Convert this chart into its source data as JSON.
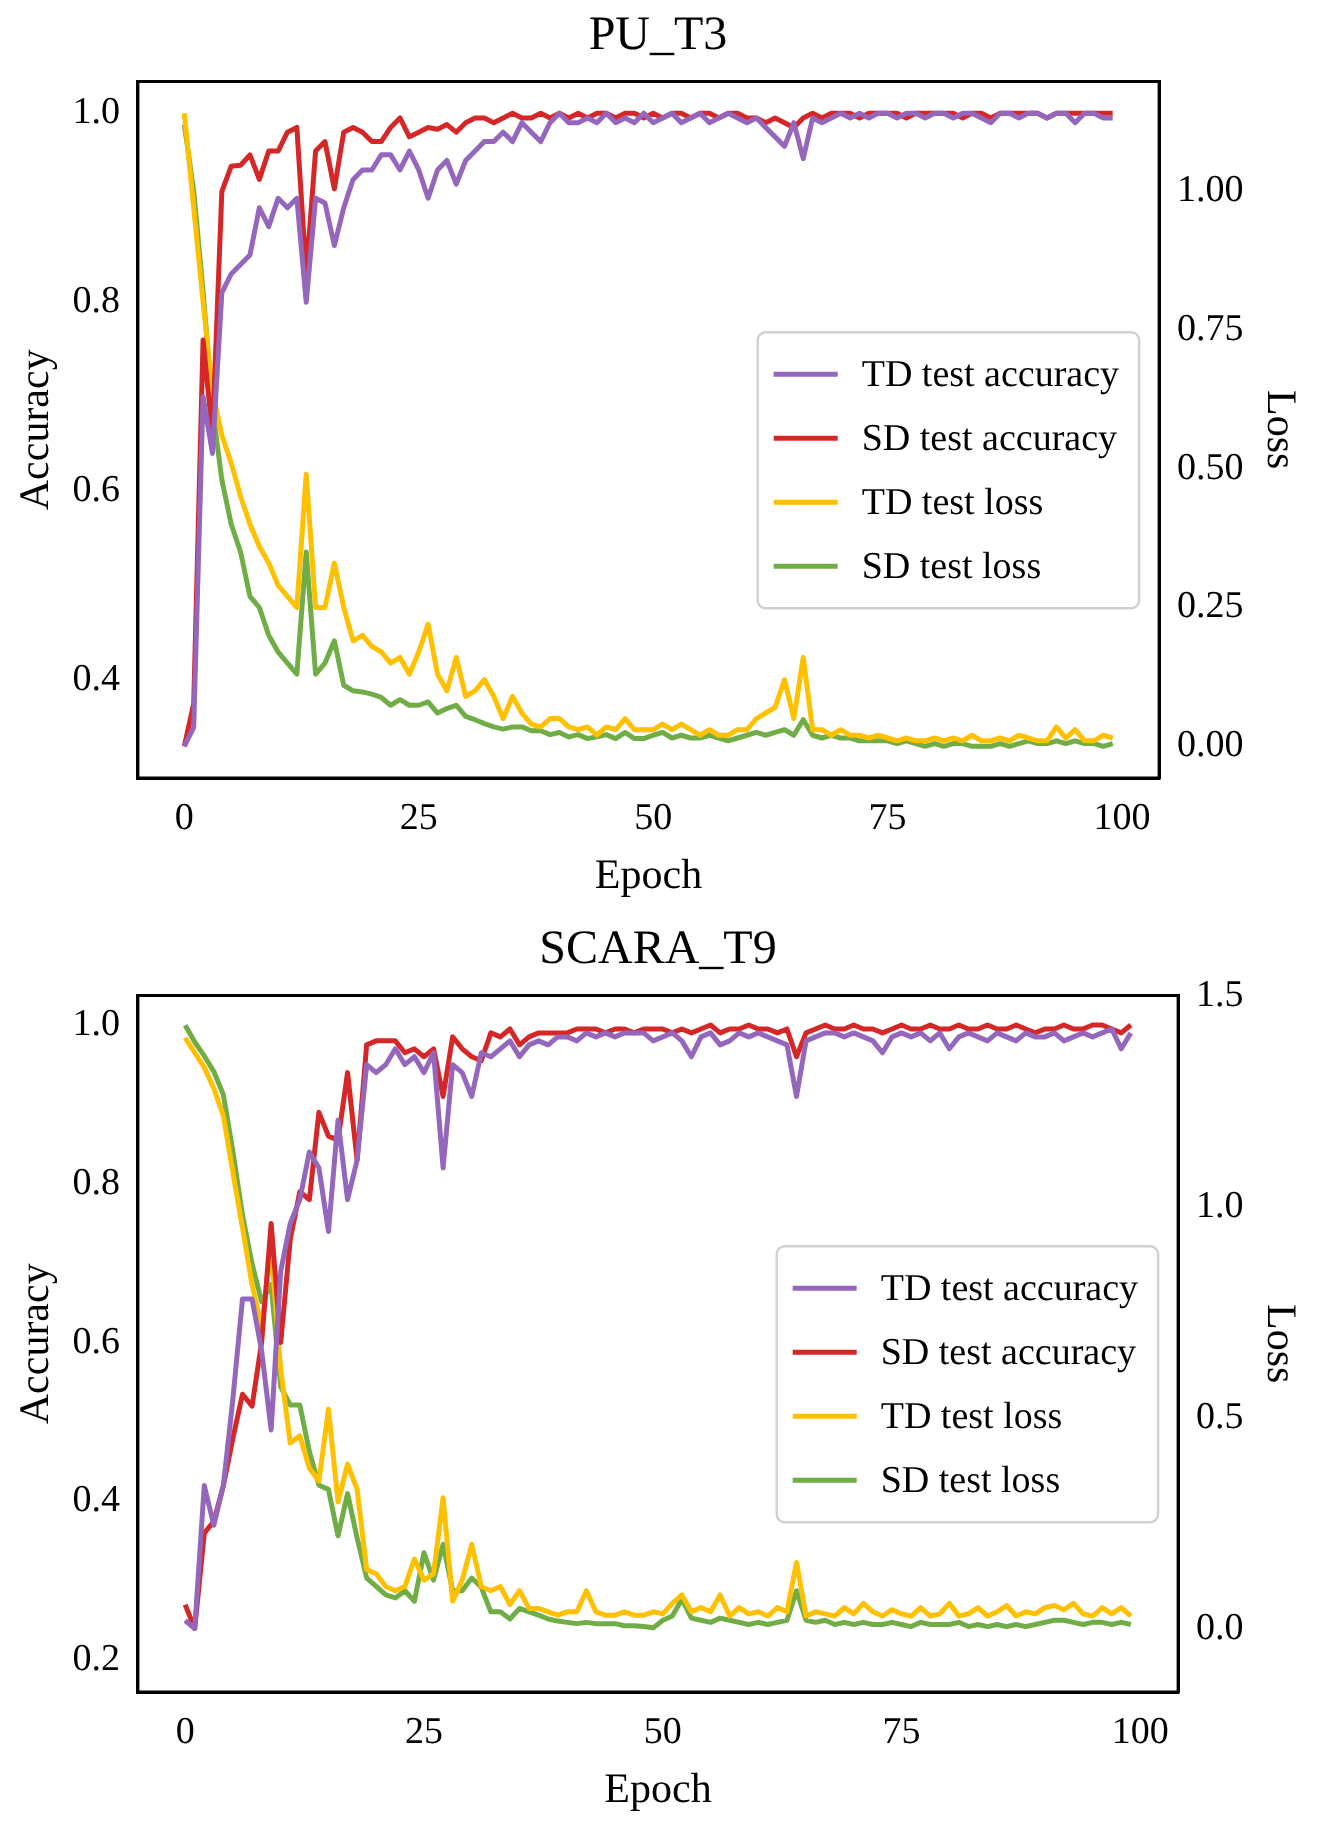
{
  "chart_data": [
    {
      "type": "line",
      "title": "PU_T3",
      "xlabel": "Epoch",
      "ylabel": "Accuracy",
      "y2label": "Loss",
      "legend": "right",
      "grid": false,
      "x": [
        0,
        1,
        2,
        3,
        4,
        5,
        6,
        7,
        8,
        9,
        10,
        11,
        12,
        13,
        14,
        15,
        16,
        17,
        18,
        19,
        20,
        21,
        22,
        23,
        24,
        25,
        26,
        27,
        28,
        29,
        30,
        31,
        32,
        33,
        34,
        35,
        36,
        37,
        38,
        39,
        40,
        41,
        42,
        43,
        44,
        45,
        46,
        47,
        48,
        49,
        50,
        51,
        52,
        53,
        54,
        55,
        56,
        57,
        58,
        59,
        60,
        61,
        62,
        63,
        64,
        65,
        66,
        67,
        68,
        69,
        70,
        71,
        72,
        73,
        74,
        75,
        76,
        77,
        78,
        79,
        80,
        81,
        82,
        83,
        84,
        85,
        86,
        87,
        88,
        89,
        90,
        91,
        92,
        93,
        94,
        95,
        96,
        97,
        98,
        99
      ],
      "xlim": [
        -4.95,
        103.95
      ],
      "xticks": [
        0,
        25,
        50,
        75,
        100
      ],
      "ylim": [
        0.2965,
        1.0335
      ],
      "yticks": [
        0.4,
        0.6,
        0.8,
        {
          "value": 1.0,
          "label": "1.0"
        }
      ],
      "y2lim": [
        -0.057,
        1.197
      ],
      "y2ticks": [
        {
          "value": 0,
          "label": "0.00"
        },
        {
          "value": 0.25,
          "label": "0.25"
        },
        {
          "value": 0.5,
          "label": "0.50"
        },
        {
          "value": 0.75,
          "label": "0.75"
        },
        {
          "value": 1.0,
          "label": "1.00"
        }
      ],
      "series": [
        {
          "name": "TD test accuracy",
          "color": "#9467bd",
          "values": [
            0.33,
            0.35,
            0.7,
            0.64,
            0.81,
            0.83,
            0.84,
            0.85,
            0.9,
            0.88,
            0.91,
            0.9,
            0.91,
            0.8,
            0.91,
            0.905,
            0.86,
            0.9,
            0.93,
            0.94,
            0.94,
            0.956,
            0.956,
            0.94,
            0.96,
            0.94,
            0.91,
            0.94,
            0.95,
            0.925,
            0.95,
            0.96,
            0.97,
            0.97,
            0.98,
            0.97,
            0.99,
            0.98,
            0.97,
            0.99,
            1.0,
            0.99,
            0.99,
            0.995,
            0.99,
            1.0,
            0.99,
            0.995,
            0.99,
            1.0,
            0.99,
            0.995,
            1.0,
            0.99,
            0.995,
            1.0,
            0.99,
            0.995,
            1.0,
            0.995,
            0.99,
            0.995,
            0.985,
            0.975,
            0.965,
            0.99,
            0.952,
            0.995,
            0.99,
            0.995,
            1.0,
            0.995,
            1.0,
            0.995,
            1.0,
            1.0,
            0.995,
            1.0,
            1.0,
            0.995,
            1.0,
            1.0,
            0.995,
            1.0,
            1.0,
            0.995,
            0.99,
            1.0,
            1.0,
            0.995,
            1.0,
            1.0,
            0.995,
            1.0,
            1.0,
            0.99,
            1.0,
            1.0,
            0.995,
            0.995
          ]
        },
        {
          "name": "SD test accuracy",
          "color": "#d62728",
          "values": [
            0.33,
            0.375,
            0.76,
            0.66,
            0.917,
            0.944,
            0.945,
            0.956,
            0.93,
            0.96,
            0.96,
            0.98,
            0.985,
            0.83,
            0.96,
            0.97,
            0.92,
            0.98,
            0.985,
            0.98,
            0.97,
            0.97,
            0.985,
            0.995,
            0.975,
            0.98,
            0.985,
            0.983,
            0.988,
            0.98,
            0.99,
            0.995,
            0.995,
            0.99,
            0.995,
            1.0,
            0.995,
            0.995,
            1.0,
            0.995,
            1.0,
            0.995,
            1.0,
            0.995,
            1.0,
            1.0,
            0.995,
            1.0,
            1.0,
            0.995,
            1.0,
            0.995,
            1.0,
            1.0,
            0.995,
            1.0,
            1.0,
            0.995,
            1.0,
            1.0,
            0.995,
            0.995,
            0.99,
            0.995,
            0.99,
            0.985,
            0.995,
            1.0,
            0.995,
            1.0,
            1.0,
            1.0,
            0.995,
            1.0,
            1.0,
            1.0,
            1.0,
            0.995,
            1.0,
            1.0,
            1.0,
            1.0,
            1.0,
            0.995,
            1.0,
            1.0,
            0.995,
            1.0,
            1.0,
            1.0,
            1.0,
            1.0,
            0.995,
            1.0,
            1.0,
            1.0,
            1.0,
            1.0,
            1.0,
            1.0
          ]
        },
        {
          "name": "TD test loss",
          "color": "#ffc000",
          "axis": "y2",
          "values": [
            1.14,
            0.97,
            0.8,
            0.64,
            0.56,
            0.51,
            0.45,
            0.4,
            0.36,
            0.33,
            0.29,
            0.27,
            0.25,
            0.49,
            0.25,
            0.25,
            0.33,
            0.25,
            0.19,
            0.2,
            0.18,
            0.17,
            0.15,
            0.16,
            0.13,
            0.17,
            0.22,
            0.13,
            0.1,
            0.16,
            0.09,
            0.1,
            0.12,
            0.09,
            0.05,
            0.09,
            0.06,
            0.04,
            0.035,
            0.05,
            0.05,
            0.035,
            0.03,
            0.035,
            0.02,
            0.035,
            0.03,
            0.05,
            0.03,
            0.03,
            0.03,
            0.04,
            0.03,
            0.04,
            0.03,
            0.02,
            0.03,
            0.02,
            0.02,
            0.03,
            0.03,
            0.05,
            0.06,
            0.07,
            0.12,
            0.05,
            0.16,
            0.03,
            0.03,
            0.02,
            0.03,
            0.02,
            0.02,
            0.015,
            0.02,
            0.015,
            0.01,
            0.015,
            0.01,
            0.01,
            0.015,
            0.01,
            0.015,
            0.01,
            0.02,
            0.01,
            0.01,
            0.015,
            0.01,
            0.02,
            0.015,
            0.01,
            0.01,
            0.035,
            0.015,
            0.03,
            0.01,
            0.01,
            0.02,
            0.015
          ]
        },
        {
          "name": "SD test loss",
          "color": "#70ad47",
          "axis": "y2",
          "values": [
            1.12,
            1.0,
            0.82,
            0.61,
            0.48,
            0.4,
            0.35,
            0.27,
            0.25,
            0.2,
            0.17,
            0.15,
            0.13,
            0.35,
            0.13,
            0.15,
            0.19,
            0.11,
            0.1,
            0.098,
            0.094,
            0.088,
            0.074,
            0.084,
            0.074,
            0.074,
            0.08,
            0.06,
            0.068,
            0.074,
            0.054,
            0.048,
            0.041,
            0.035,
            0.031,
            0.035,
            0.035,
            0.028,
            0.028,
            0.021,
            0.025,
            0.017,
            0.021,
            0.014,
            0.017,
            0.021,
            0.014,
            0.025,
            0.014,
            0.014,
            0.02,
            0.025,
            0.015,
            0.02,
            0.015,
            0.015,
            0.02,
            0.015,
            0.01,
            0.015,
            0.02,
            0.025,
            0.02,
            0.025,
            0.03,
            0.02,
            0.048,
            0.02,
            0.015,
            0.02,
            0.015,
            0.015,
            0.01,
            0.01,
            0.01,
            0.01,
            0.005,
            0.01,
            0.005,
            0.0,
            0.005,
            0.0,
            0.005,
            0.005,
            0.0,
            0.0,
            0.0,
            0.005,
            0.0,
            0.005,
            0.01,
            0.005,
            0.005,
            0.01,
            0.005,
            0.01,
            0.005,
            0.005,
            0.0,
            0.005
          ]
        }
      ]
    },
    {
      "type": "line",
      "title": "SCARA_T9",
      "xlabel": "Epoch",
      "ylabel": "Accuracy",
      "y2label": "Loss",
      "legend": "right",
      "grid": false,
      "x": [
        0,
        1,
        2,
        3,
        4,
        5,
        6,
        7,
        8,
        9,
        10,
        11,
        12,
        13,
        14,
        15,
        16,
        17,
        18,
        19,
        20,
        21,
        22,
        23,
        24,
        25,
        26,
        27,
        28,
        29,
        30,
        31,
        32,
        33,
        34,
        35,
        36,
        37,
        38,
        39,
        40,
        41,
        42,
        43,
        44,
        45,
        46,
        47,
        48,
        49,
        50,
        51,
        52,
        53,
        54,
        55,
        56,
        57,
        58,
        59,
        60,
        61,
        62,
        63,
        64,
        65,
        66,
        67,
        68,
        69,
        70,
        71,
        72,
        73,
        74,
        75,
        76,
        77,
        78,
        79,
        80,
        81,
        82,
        83,
        84,
        85,
        86,
        87,
        88,
        89,
        90,
        91,
        92,
        93,
        94,
        95,
        96,
        97,
        98,
        99
      ],
      "xlim": [
        -4.95,
        103.95
      ],
      "xticks": [
        0,
        25,
        50,
        75,
        100
      ],
      "ylim": [
        0.16,
        1.037
      ],
      "yticks": [
        0.2,
        0.4,
        0.6,
        0.8,
        {
          "value": 1.0,
          "label": "1.0"
        }
      ],
      "y2lim": [
        -0.15,
        1.5
      ],
      "y2ticks": [
        {
          "value": 0,
          "label": "0.0"
        },
        0.5,
        {
          "value": 1.0,
          "label": "1.0"
        },
        1.5
      ],
      "series": [
        {
          "name": "TD test accuracy",
          "color": "#9467bd",
          "values": [
            0.25,
            0.24,
            0.42,
            0.37,
            0.42,
            0.53,
            0.655,
            0.655,
            0.59,
            0.49,
            0.69,
            0.75,
            0.78,
            0.84,
            0.82,
            0.74,
            0.88,
            0.78,
            0.83,
            0.95,
            0.94,
            0.95,
            0.97,
            0.95,
            0.96,
            0.94,
            0.965,
            0.82,
            0.95,
            0.94,
            0.91,
            0.965,
            0.96,
            0.97,
            0.98,
            0.96,
            0.975,
            0.98,
            0.975,
            0.985,
            0.985,
            0.98,
            0.99,
            0.985,
            0.99,
            0.985,
            0.99,
            0.99,
            0.99,
            0.98,
            0.985,
            0.99,
            0.98,
            0.96,
            0.985,
            0.99,
            0.975,
            0.98,
            0.99,
            0.985,
            0.99,
            0.985,
            0.98,
            0.975,
            0.91,
            0.98,
            0.985,
            0.99,
            0.99,
            0.985,
            0.99,
            0.985,
            0.98,
            0.965,
            0.985,
            0.99,
            0.985,
            0.99,
            0.98,
            0.99,
            0.97,
            0.985,
            0.99,
            0.985,
            0.98,
            0.99,
            0.985,
            0.98,
            0.99,
            0.985,
            0.985,
            0.99,
            0.98,
            0.985,
            0.99,
            0.985,
            0.99,
            0.995,
            0.97,
            0.99
          ]
        },
        {
          "name": "SD test accuracy",
          "color": "#d62728",
          "values": [
            0.27,
            0.24,
            0.36,
            0.375,
            0.42,
            0.48,
            0.535,
            0.52,
            0.6,
            0.75,
            0.6,
            0.73,
            0.79,
            0.78,
            0.89,
            0.86,
            0.855,
            0.94,
            0.83,
            0.975,
            0.98,
            0.98,
            0.98,
            0.965,
            0.97,
            0.96,
            0.97,
            0.91,
            0.985,
            0.97,
            0.96,
            0.955,
            0.99,
            0.985,
            0.995,
            0.975,
            0.985,
            0.99,
            0.99,
            0.99,
            0.99,
            0.995,
            0.995,
            0.995,
            0.99,
            0.995,
            0.995,
            0.99,
            0.995,
            0.995,
            0.995,
            0.99,
            0.995,
            0.99,
            0.995,
            1.0,
            0.99,
            0.995,
            0.995,
            1.0,
            0.995,
            0.995,
            0.99,
            0.995,
            0.96,
            0.99,
            0.995,
            1.0,
            0.995,
            0.995,
            1.0,
            0.995,
            0.995,
            0.99,
            0.995,
            1.0,
            0.995,
            0.995,
            1.0,
            0.995,
            0.995,
            1.0,
            0.995,
            0.995,
            1.0,
            0.995,
            0.995,
            1.0,
            0.995,
            0.99,
            0.995,
            0.995,
            1.0,
            0.995,
            0.995,
            1.0,
            1.0,
            0.995,
            0.99,
            1.0
          ]
        },
        {
          "name": "TD test loss",
          "color": "#ffc000",
          "axis": "y2",
          "values": [
            1.4,
            1.365,
            1.33,
            1.28,
            1.215,
            1.08,
            0.95,
            0.815,
            0.715,
            0.9,
            0.615,
            0.44,
            0.457,
            0.38,
            0.35,
            0.52,
            0.3,
            0.39,
            0.33,
            0.14,
            0.13,
            0.1,
            0.09,
            0.1,
            0.165,
            0.115,
            0.13,
            0.31,
            0.065,
            0.115,
            0.2,
            0.1,
            0.09,
            0.1,
            0.057,
            0.09,
            0.048,
            0.048,
            0.04,
            0.032,
            0.04,
            0.04,
            0.09,
            0.04,
            0.032,
            0.032,
            0.04,
            0.032,
            0.032,
            0.04,
            0.035,
            0.06,
            0.08,
            0.04,
            0.05,
            0.04,
            0.08,
            0.03,
            0.05,
            0.035,
            0.04,
            0.03,
            0.05,
            0.04,
            0.157,
            0.03,
            0.04,
            0.035,
            0.03,
            0.05,
            0.035,
            0.06,
            0.04,
            0.03,
            0.045,
            0.035,
            0.03,
            0.05,
            0.03,
            0.035,
            0.06,
            0.03,
            0.035,
            0.05,
            0.03,
            0.04,
            0.055,
            0.03,
            0.04,
            0.035,
            0.05,
            0.055,
            0.045,
            0.06,
            0.035,
            0.03,
            0.05,
            0.035,
            0.05,
            0.03
          ]
        },
        {
          "name": "SD test loss",
          "color": "#70ad47",
          "axis": "y2",
          "values": [
            1.43,
            1.39,
            1.357,
            1.32,
            1.265,
            1.13,
            0.98,
            0.865,
            0.775,
            0.815,
            0.573,
            0.53,
            0.53,
            0.42,
            0.34,
            0.33,
            0.22,
            0.32,
            0.215,
            0.12,
            0.1,
            0.08,
            0.073,
            0.09,
            0.065,
            0.18,
            0.115,
            0.2,
            0.09,
            0.09,
            0.12,
            0.098,
            0.04,
            0.04,
            0.023,
            0.048,
            0.04,
            0.032,
            0.023,
            0.018,
            0.015,
            0.012,
            0.015,
            0.012,
            0.012,
            0.012,
            0.007,
            0.007,
            0.005,
            0.002,
            0.02,
            0.03,
            0.07,
            0.025,
            0.02,
            0.015,
            0.025,
            0.02,
            0.015,
            0.01,
            0.015,
            0.01,
            0.015,
            0.02,
            0.09,
            0.02,
            0.015,
            0.02,
            0.01,
            0.015,
            0.01,
            0.015,
            0.01,
            0.01,
            0.015,
            0.01,
            0.005,
            0.015,
            0.01,
            0.01,
            0.01,
            0.015,
            0.005,
            0.01,
            0.005,
            0.01,
            0.005,
            0.01,
            0.005,
            0.01,
            0.015,
            0.02,
            0.02,
            0.015,
            0.01,
            0.015,
            0.015,
            0.01,
            0.015,
            0.01
          ]
        }
      ]
    }
  ]
}
